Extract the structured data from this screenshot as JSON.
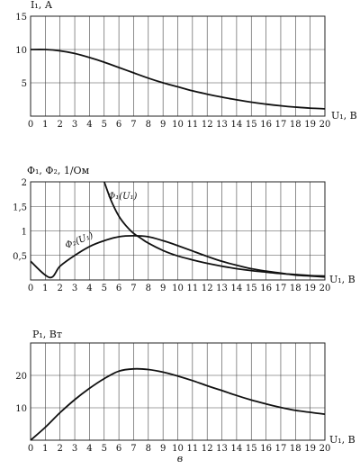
{
  "figure_caption": "в",
  "chart_data": [
    {
      "type": "line",
      "ylabel": "I₁, А",
      "xlabel": "U₁, В",
      "xlim": [
        0,
        20
      ],
      "ylim": [
        0,
        15
      ],
      "x_ticks": [
        "0",
        "1",
        "2",
        "3",
        "4",
        "5",
        "6",
        "7",
        "8",
        "9",
        "10",
        "11",
        "12",
        "13",
        "14",
        "15",
        "16",
        "17",
        "18",
        "19",
        "20"
      ],
      "y_ticks": [
        {
          "value": 5,
          "label": "5"
        },
        {
          "value": 10,
          "label": "10"
        },
        {
          "value": 15,
          "label": "15"
        }
      ],
      "grid": true,
      "series": [
        {
          "x": [
            0,
            1,
            2,
            3,
            4,
            5,
            6,
            7,
            8,
            9,
            10,
            11,
            12,
            13,
            14,
            15,
            16,
            17,
            18,
            19,
            20
          ],
          "y": [
            10,
            10,
            9.8,
            9.4,
            8.8,
            8.1,
            7.3,
            6.5,
            5.7,
            5.0,
            4.4,
            3.8,
            3.3,
            2.85,
            2.45,
            2.1,
            1.8,
            1.55,
            1.35,
            1.2,
            1.1
          ]
        }
      ]
    },
    {
      "type": "line",
      "ylabel": "Φ₁, Φ₂, 1/Ом",
      "xlabel": "U₁, В",
      "xlim": [
        0,
        20
      ],
      "ylim": [
        0,
        2
      ],
      "x_ticks": [
        "0",
        "1",
        "2",
        "3",
        "4",
        "5",
        "6",
        "7",
        "8",
        "9",
        "10",
        "11",
        "12",
        "13",
        "14",
        "15",
        "16",
        "17",
        "18",
        "19",
        "20"
      ],
      "y_ticks": [
        {
          "value": 0.5,
          "label": "0,5"
        },
        {
          "value": 1,
          "label": "1"
        },
        {
          "value": 1.5,
          "label": "1,5"
        },
        {
          "value": 2,
          "label": "2"
        }
      ],
      "grid": true,
      "series": [
        {
          "name": "Φ₁(U₁)",
          "x": [
            5,
            5.5,
            6,
            6.5,
            7,
            7.5,
            8,
            9,
            10,
            11,
            12,
            13,
            14,
            15,
            16,
            17,
            18,
            19,
            20
          ],
          "y": [
            2.0,
            1.6,
            1.3,
            1.1,
            0.95,
            0.85,
            0.75,
            0.6,
            0.49,
            0.41,
            0.34,
            0.28,
            0.23,
            0.19,
            0.16,
            0.13,
            0.11,
            0.09,
            0.08
          ]
        },
        {
          "name": "Φ₂(U₁)",
          "x": [
            0,
            1.3,
            2,
            3,
            4,
            5,
            6,
            7,
            8,
            9,
            10,
            11,
            12,
            13,
            14,
            15,
            16,
            17,
            18,
            19,
            20
          ],
          "y": [
            0.38,
            0.05,
            0.28,
            0.5,
            0.68,
            0.8,
            0.88,
            0.9,
            0.88,
            0.8,
            0.7,
            0.59,
            0.48,
            0.38,
            0.3,
            0.23,
            0.18,
            0.14,
            0.1,
            0.08,
            0.06
          ]
        }
      ]
    },
    {
      "type": "line",
      "ylabel": "P₁, Вт",
      "xlabel": "U₁, В",
      "xlim": [
        0,
        20
      ],
      "ylim": [
        0,
        30
      ],
      "x_ticks": [
        "0",
        "1",
        "2",
        "3",
        "4",
        "5",
        "6",
        "7",
        "8",
        "9",
        "10",
        "11",
        "12",
        "13",
        "14",
        "15",
        "16",
        "17",
        "18",
        "19",
        "20"
      ],
      "y_ticks": [
        {
          "value": 10,
          "label": "10"
        },
        {
          "value": 20,
          "label": "20"
        }
      ],
      "grid": true,
      "series": [
        {
          "x": [
            0,
            1,
            2,
            3,
            4,
            5,
            6,
            7,
            8,
            9,
            10,
            11,
            12,
            13,
            14,
            15,
            16,
            17,
            18,
            19,
            20
          ],
          "y": [
            0,
            4,
            8.5,
            12.5,
            16,
            19,
            21.3,
            22,
            21.8,
            21,
            19.8,
            18.4,
            16.8,
            15.3,
            13.8,
            12.4,
            11.2,
            10.1,
            9.2,
            8.6,
            8.0
          ]
        }
      ]
    }
  ]
}
